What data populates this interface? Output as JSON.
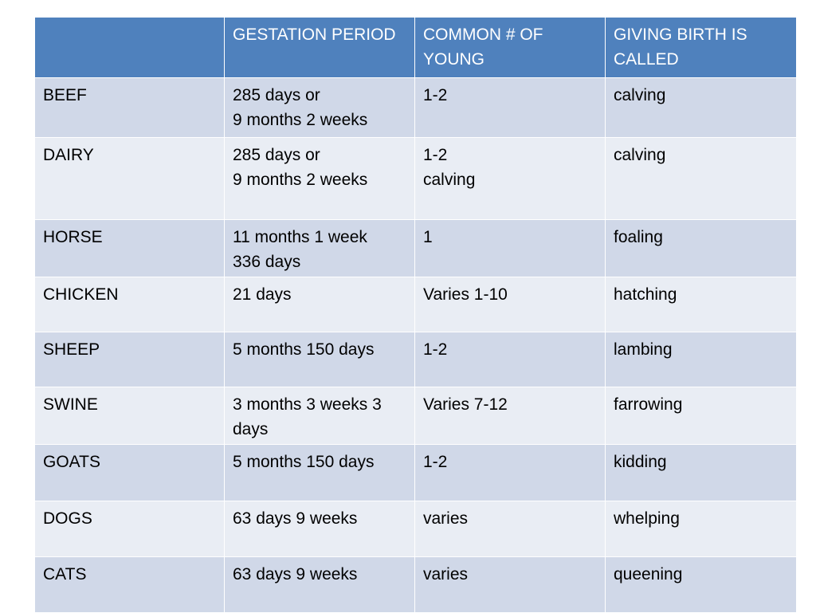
{
  "table": {
    "headers": [
      "",
      "GESTATION PERIOD",
      "COMMON # OF YOUNG",
      "GIVING BIRTH IS CALLED"
    ],
    "rows": [
      {
        "animal": "BEEF",
        "gestation": "285 days or\n9 months 2 weeks",
        "young": "1-2",
        "birth": "calving"
      },
      {
        "animal": "DAIRY",
        "gestation": "285 days or\n9 months 2 weeks",
        "young": "1-2\ncalving",
        "birth": "calving"
      },
      {
        "animal": "HORSE",
        "gestation": "11 months 1 week\n336 days",
        "young": "1",
        "birth": "foaling"
      },
      {
        "animal": "CHICKEN",
        "gestation": "21 days",
        "young": "Varies 1-10",
        "birth": "hatching"
      },
      {
        "animal": "SHEEP",
        "gestation": "5 months 150 days",
        "young": "1-2",
        "birth": "lambing"
      },
      {
        "animal": "SWINE",
        "gestation": "3 months 3 weeks 3 days",
        "young": "Varies 7-12",
        "birth": "farrowing"
      },
      {
        "animal": "GOATS",
        "gestation": "5 months 150 days",
        "young": "1-2",
        "birth": "kidding"
      },
      {
        "animal": "DOGS",
        "gestation": "63 days 9 weeks",
        "young": "varies",
        "birth": "whelping"
      },
      {
        "animal": "CATS",
        "gestation": "63 days 9 weeks",
        "young": "varies",
        "birth": "queening"
      }
    ]
  },
  "colors": {
    "header_bg": "#4f81bd",
    "row_odd_bg": "#d0d8e8",
    "row_even_bg": "#e9edf4",
    "border": "#ffffff"
  }
}
